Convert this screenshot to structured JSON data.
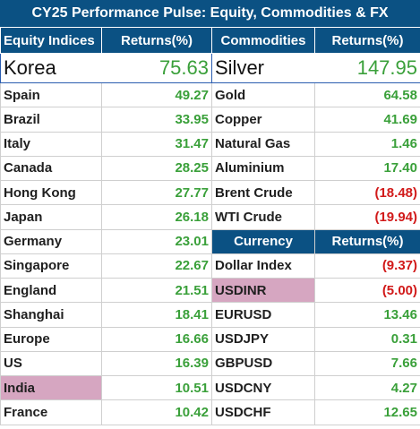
{
  "title": "CY25 Performance Pulse: Equity, Commodities & FX",
  "headers": {
    "equity": "Equity Indices",
    "equity_returns": "Returns(%)",
    "commodities": "Commodities",
    "commodities_returns": "Returns(%)",
    "currency": "Currency",
    "currency_returns": "Returns(%)"
  },
  "top": {
    "equity_name": "Korea",
    "equity_value": "75.63",
    "commodity_name": "Silver",
    "commodity_value": "147.95"
  },
  "equity": [
    {
      "name": "Spain",
      "value": "49.27"
    },
    {
      "name": "Brazil",
      "value": "33.95"
    },
    {
      "name": "Italy",
      "value": "31.47"
    },
    {
      "name": "Canada",
      "value": "28.25"
    },
    {
      "name": "Hong Kong",
      "value": "27.77"
    },
    {
      "name": "Japan",
      "value": "26.18"
    },
    {
      "name": "Germany",
      "value": "23.01"
    },
    {
      "name": "Singapore",
      "value": "22.67"
    },
    {
      "name": "England",
      "value": "21.51"
    },
    {
      "name": "Shanghai",
      "value": "18.41"
    },
    {
      "name": "Europe",
      "value": "16.66"
    },
    {
      "name": "US",
      "value": "16.39"
    },
    {
      "name": "India",
      "value": "10.51"
    },
    {
      "name": "France",
      "value": "10.42"
    }
  ],
  "commodities": [
    {
      "name": "Gold",
      "value": "64.58"
    },
    {
      "name": "Copper",
      "value": "41.69"
    },
    {
      "name": "Natural Gas",
      "value": "1.46"
    },
    {
      "name": "Aluminium",
      "value": "17.40"
    },
    {
      "name": "Brent Crude",
      "value": "(18.48)"
    },
    {
      "name": "WTI Crude",
      "value": "(19.94)"
    }
  ],
  "currency": [
    {
      "name": "Dollar Index",
      "value": "(9.37)"
    },
    {
      "name": "USDINR",
      "value": "(5.00)"
    },
    {
      "name": "EURUSD",
      "value": "13.46"
    },
    {
      "name": "USDJPY",
      "value": "0.31"
    },
    {
      "name": "GBPUSD",
      "value": "7.66"
    },
    {
      "name": "USDCNY",
      "value": "4.27"
    },
    {
      "name": "USDCHF",
      "value": "12.65"
    }
  ],
  "colors": {
    "header_bg": "#0b5183",
    "positive": "#3aa03a",
    "negative": "#d11a1a",
    "highlight": "#d6a6c1"
  }
}
